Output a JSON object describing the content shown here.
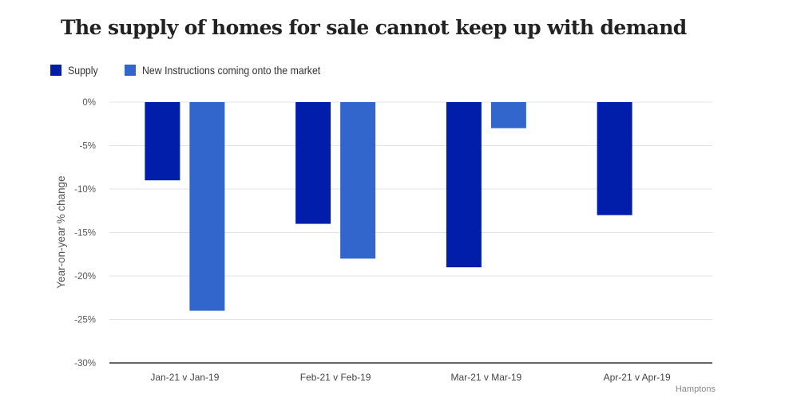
{
  "chart_data": {
    "type": "bar",
    "title": "The supply of homes for sale cannot keep up with demand",
    "xlabel": "",
    "ylabel": "Year-on-year % change",
    "ylim": [
      -30,
      0
    ],
    "yticks": [
      0,
      -5,
      -10,
      -15,
      -20,
      -25,
      -30
    ],
    "ytick_labels": [
      "0%",
      "-5%",
      "-10%",
      "-15%",
      "-20%",
      "-25%",
      "-30%"
    ],
    "grid": true,
    "legend_position": "top-left",
    "categories": [
      "Jan-21 v Jan-19",
      "Feb-21 v Feb-19",
      "Mar-21 v Mar-19",
      "Apr-21 v Apr-19"
    ],
    "series": [
      {
        "name": "Supply",
        "color": "#001eaa",
        "values": [
          -9,
          -14,
          -19,
          -13
        ]
      },
      {
        "name": "New Instructions coming onto the market",
        "color": "#3366cc",
        "values": [
          -24,
          -18,
          -3,
          null
        ]
      }
    ],
    "source": "Hamptons"
  }
}
